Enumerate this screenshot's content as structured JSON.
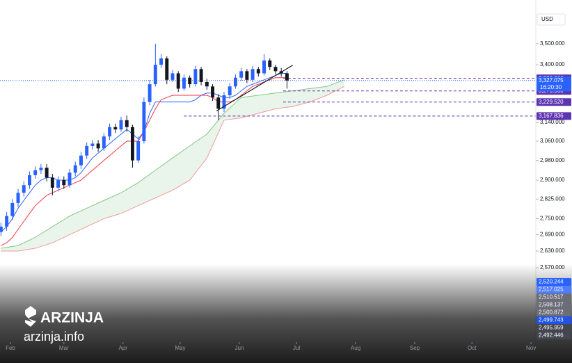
{
  "chart_data": {
    "type": "candlestick",
    "currency": "USD",
    "log_scale": true,
    "xlim": [
      26.5,
      307.5
    ],
    "xticks": [
      {
        "value": 32,
        "label": "Feb"
      },
      {
        "value": 60,
        "label": "Mar"
      },
      {
        "value": 91,
        "label": "Apr"
      },
      {
        "value": 121,
        "label": "May"
      },
      {
        "value": 152,
        "label": "Jun"
      },
      {
        "value": 182,
        "label": "Jul"
      },
      {
        "value": 213,
        "label": "Aug"
      },
      {
        "value": 244,
        "label": "Sep"
      },
      {
        "value": 274,
        "label": "Oct"
      },
      {
        "value": 305,
        "label": "Nov"
      }
    ],
    "ylim": [
      2313,
      3682
    ],
    "yticks": [
      {
        "value": 3500,
        "label": "3,500.000"
      },
      {
        "value": 3400,
        "label": "3,400.000"
      },
      {
        "value": 3140,
        "label": "3,140.000"
      },
      {
        "value": 3060,
        "label": "3,060.000"
      },
      {
        "value": 2980,
        "label": "2,980.000"
      },
      {
        "value": 2900,
        "label": "2,900.000"
      },
      {
        "value": 2825,
        "label": "2,825.000"
      },
      {
        "value": 2750,
        "label": "2,750.000"
      },
      {
        "value": 2690,
        "label": "2,690.000"
      },
      {
        "value": 2630,
        "label": "2,630.000"
      },
      {
        "value": 2570,
        "label": "2,570.000"
      }
    ],
    "x": [
      27,
      30,
      33,
      36,
      39,
      42,
      45,
      48,
      51,
      54,
      57,
      60,
      63,
      66,
      69,
      72,
      75,
      78,
      81,
      84,
      87,
      90,
      93,
      96,
      99,
      102,
      105,
      108,
      111,
      114,
      117,
      120,
      123,
      126,
      129,
      132,
      135,
      138,
      141,
      144,
      147,
      150,
      153,
      156,
      159,
      162,
      165,
      168,
      171,
      174,
      177
    ],
    "open": [
      2700,
      2720,
      2760,
      2810,
      2850,
      2880,
      2920,
      2940,
      2950,
      2910,
      2870,
      2900,
      2880,
      2930,
      2960,
      3000,
      3040,
      3050,
      3030,
      3080,
      3120,
      3110,
      3150,
      3120,
      2980,
      3060,
      3230,
      3310,
      3400,
      3430,
      3330,
      3360,
      3290,
      3340,
      3310,
      3380,
      3320,
      3300,
      3250,
      3200,
      3260,
      3300,
      3340,
      3370,
      3330,
      3380,
      3360,
      3420,
      3390,
      3370,
      3360
    ],
    "high": [
      2735,
      2775,
      2825,
      2865,
      2895,
      2935,
      2955,
      2965,
      2965,
      2925,
      2915,
      2915,
      2945,
      2975,
      3015,
      3055,
      3065,
      3065,
      3095,
      3135,
      3135,
      3165,
      3170,
      3130,
      3080,
      3250,
      3330,
      3500,
      3450,
      3440,
      3375,
      3370,
      3355,
      3350,
      3395,
      3390,
      3335,
      3310,
      3265,
      3275,
      3315,
      3355,
      3385,
      3380,
      3395,
      3390,
      3450,
      3430,
      3400,
      3385,
      3370
    ],
    "low": [
      2685,
      2705,
      2745,
      2795,
      2835,
      2865,
      2905,
      2925,
      2895,
      2840,
      2855,
      2865,
      2870,
      2915,
      2945,
      2985,
      3025,
      3015,
      3020,
      3065,
      3095,
      3100,
      3100,
      2950,
      2970,
      3050,
      3215,
      3300,
      3385,
      3310,
      3320,
      3275,
      3280,
      3295,
      3300,
      3305,
      3285,
      3235,
      3150,
      3185,
      3245,
      3290,
      3325,
      3315,
      3320,
      3345,
      3350,
      3375,
      3355,
      3345,
      3290
    ],
    "close": [
      2720,
      2760,
      2810,
      2850,
      2880,
      2920,
      2940,
      2950,
      2910,
      2870,
      2900,
      2880,
      2930,
      2960,
      3000,
      3040,
      3050,
      3030,
      3080,
      3120,
      3110,
      3150,
      3120,
      2980,
      3060,
      3230,
      3310,
      3400,
      3430,
      3330,
      3360,
      3290,
      3340,
      3310,
      3380,
      3320,
      3300,
      3250,
      3200,
      3260,
      3300,
      3340,
      3370,
      3330,
      3380,
      3360,
      3420,
      3390,
      3370,
      3360,
      3327
    ],
    "up_color": "#2962ff",
    "down_color": "#131722",
    "lines": [
      {
        "color": "#2962ff",
        "values": [
          2700,
          2720,
          2750,
          2790,
          2820,
          2850,
          2880,
          2900,
          2910,
          2910,
          2900,
          2900,
          2900,
          2910,
          2930,
          2960,
          2990,
          3010,
          3030,
          3050,
          3070,
          3090,
          3110,
          3090,
          3070,
          3100,
          3180,
          3230,
          3230,
          3230,
          3230,
          3230,
          3230,
          3230,
          3240,
          3260,
          3270,
          3270,
          3260,
          3250,
          3250,
          3260,
          3280,
          3300,
          3310,
          3320,
          3330,
          3340,
          3350,
          3360,
          3360
        ]
      },
      {
        "color": "#f23645",
        "values": [
          2650,
          2660,
          2680,
          2710,
          2740,
          2770,
          2800,
          2820,
          2840,
          2850,
          2860,
          2870,
          2880,
          2890,
          2900,
          2920,
          2940,
          2960,
          2980,
          3000,
          3020,
          3040,
          3060,
          3060,
          3060,
          3100,
          3150,
          3200,
          3240,
          3250,
          3260,
          3260,
          3260,
          3260,
          3260,
          3260,
          3260,
          3250,
          3230,
          3230,
          3230,
          3240,
          3260,
          3280,
          3300,
          3310,
          3320,
          3330,
          3340,
          3340,
          3340
        ]
      }
    ],
    "cloud": {
      "x": [
        27,
        36,
        45,
        54,
        63,
        72,
        81,
        90,
        99,
        108,
        117,
        126,
        135,
        144,
        153,
        162,
        171,
        180,
        189,
        198,
        207
      ],
      "upper": [
        2640,
        2650,
        2680,
        2720,
        2760,
        2790,
        2820,
        2850,
        2890,
        2940,
        2990,
        3040,
        3090,
        3180,
        3250,
        3260,
        3270,
        3280,
        3290,
        3300,
        3330
      ],
      "lower": [
        2630,
        2630,
        2640,
        2660,
        2690,
        2720,
        2750,
        2770,
        2800,
        2830,
        2860,
        2900,
        2990,
        3150,
        3160,
        3180,
        3200,
        3210,
        3230,
        3260,
        3300
      ],
      "fill": "#4caf50",
      "upper_color": "#81c784",
      "lower_color": "#ef9a9a"
    },
    "trendline": {
      "x": [
        140,
        180
      ],
      "values": [
        3190,
        3398
      ],
      "color": "#131722"
    },
    "last_price": {
      "value": 3327.075,
      "label": "3,327.075",
      "countdown": "16:20:30",
      "color": "#2962ff"
    },
    "levels": [
      {
        "value": 3336.866,
        "label": "3,336.866",
        "x_from": 175,
        "color": "#5e35b1"
      },
      {
        "value": 3279.56,
        "label": "3,279.560",
        "x_from": 175,
        "color": "#5e35b1"
      },
      {
        "value": 3229.52,
        "label": "3,229.520",
        "x_from": 175,
        "color": "#5e35b1"
      },
      {
        "value": 3167.836,
        "label": "3,167.836",
        "x_from": 123,
        "color": "#5e35b1"
      }
    ],
    "side_labels": [
      {
        "value": 2520.244,
        "label": "2,520.244",
        "color": "#2962ff"
      },
      {
        "value": 2517.025,
        "label": "2,517.025",
        "color": "#4f7dff"
      },
      {
        "value": 2510.517,
        "label": "2,510.517",
        "color": "#6a6d78"
      },
      {
        "value": 2508.137,
        "label": "2,508.137",
        "color": "#6a6d78"
      },
      {
        "value": 2500.872,
        "label": "2,500.872",
        "color": "#6a6d78"
      },
      {
        "value": 2499.743,
        "label": "2,499.743",
        "color": "#1e53e5"
      },
      {
        "value": 2495.959,
        "label": "2,495.959",
        "color": "#434651"
      },
      {
        "value": 2492.446,
        "label": "2,492.446",
        "color": "#434651"
      }
    ]
  },
  "watermark": {
    "brand": "ARZINJA",
    "site": "arzinja.info"
  }
}
